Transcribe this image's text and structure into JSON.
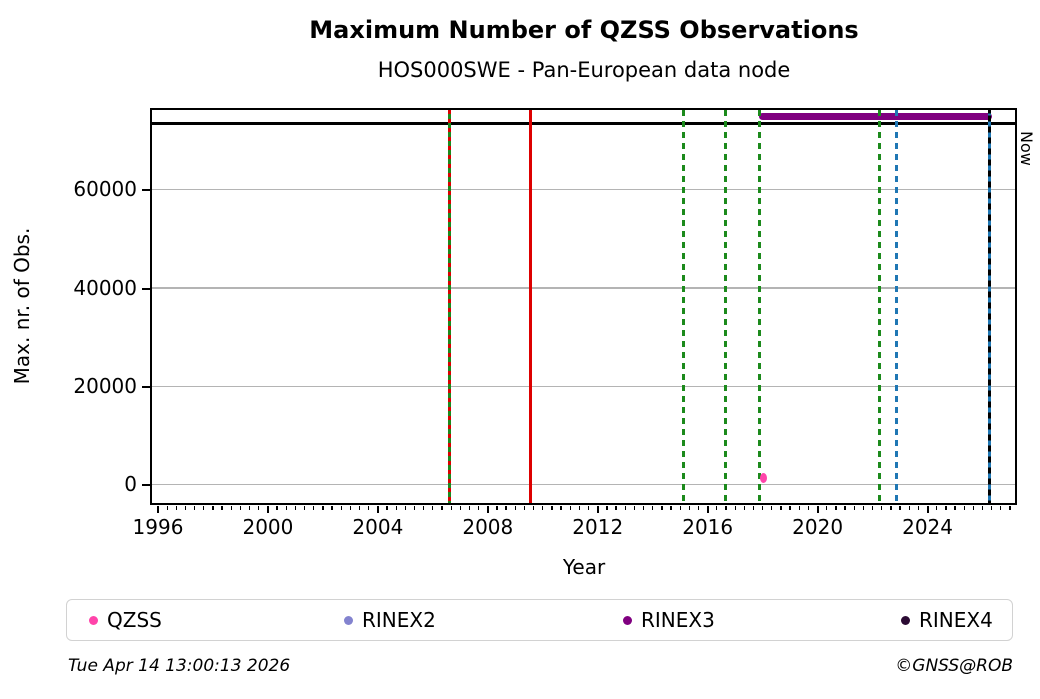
{
  "header": {
    "title": "Maximum Number of QZSS Observations",
    "subtitle": "HOS000SWE - Pan-European data node"
  },
  "footer": {
    "timestamp": "Tue Apr 14 13:00:13 2026",
    "credit": "©GNSS@ROB"
  },
  "chart_data": {
    "type": "scatter",
    "title": "Maximum Number of QZSS Observations",
    "subtitle": "HOS000SWE - Pan-European data node",
    "xlabel": "Year",
    "ylabel": "Max. nr. of Obs.",
    "xlim": [
      1995.8,
      2027.2
    ],
    "ylim": [
      -3700,
      76300
    ],
    "xticks": [
      1996,
      2000,
      2004,
      2008,
      2012,
      2016,
      2020,
      2024
    ],
    "yticks": [
      0,
      20000,
      40000,
      60000
    ],
    "minor_xtick_step_years": 0.3333333,
    "grid": "horizontal-gray",
    "legend_position": "bottom",
    "series": [
      {
        "name": "QZSS",
        "color": "#ff44aa",
        "marker": "dot",
        "points": [
          {
            "x": 2018.05,
            "y": 1300
          }
        ]
      }
    ],
    "reference_lines": [
      {
        "kind": "hline",
        "y": 73500,
        "color": "#000000",
        "style": "solid",
        "thickness": 2.5,
        "meaning": "max-observations-level"
      }
    ],
    "availability_bars": [
      {
        "name": "RINEX3",
        "color": "#800080",
        "x_start": 2017.9,
        "x_end": 2026.38,
        "y": 74800,
        "thickness": 7
      }
    ],
    "event_lines": [
      {
        "x": 2006.64,
        "color": "#1c8a1c",
        "style": "solid",
        "dash": 0,
        "gap": 0,
        "offset": 0
      },
      {
        "x": 2006.64,
        "color": "#dd0000",
        "style": "dashed",
        "dash": 4,
        "gap": 5,
        "offset": 0
      },
      {
        "x": 2009.57,
        "color": "#dd0000",
        "style": "solid",
        "dash": 0,
        "gap": 0,
        "offset": 0
      },
      {
        "x": 2015.13,
        "color": "#1c8a1c",
        "style": "dashed",
        "dash": 6,
        "gap": 5,
        "offset": 0
      },
      {
        "x": 2016.68,
        "color": "#1c8a1c",
        "style": "dashed",
        "dash": 6,
        "gap": 5,
        "offset": 0
      },
      {
        "x": 2017.92,
        "color": "#1c8a1c",
        "style": "dashed",
        "dash": 6,
        "gap": 5,
        "offset": 0
      },
      {
        "x": 2022.28,
        "color": "#1c8a1c",
        "style": "dashed",
        "dash": 6,
        "gap": 5,
        "offset": 0
      },
      {
        "x": 2022.9,
        "color": "#1f77b4",
        "style": "dashed",
        "dash": 6,
        "gap": 5,
        "offset": 0
      },
      {
        "x": 2026.285,
        "color": "#1f77b4",
        "style": "dashed",
        "dash": 6,
        "gap": 5,
        "offset": 0
      },
      {
        "x": 2026.285,
        "color": "#000000",
        "style": "dashed",
        "dash": 6,
        "gap": 5,
        "offset": 5.5,
        "label": "Now"
      }
    ],
    "now_label": "Now",
    "legend": {
      "entries": [
        {
          "label": "QZSS",
          "color": "#ff44aa"
        },
        {
          "label": "RINEX2",
          "color": "#8383cf"
        },
        {
          "label": "RINEX3",
          "color": "#800080"
        },
        {
          "label": "RINEX4",
          "color": "#2b0b33"
        }
      ]
    }
  }
}
